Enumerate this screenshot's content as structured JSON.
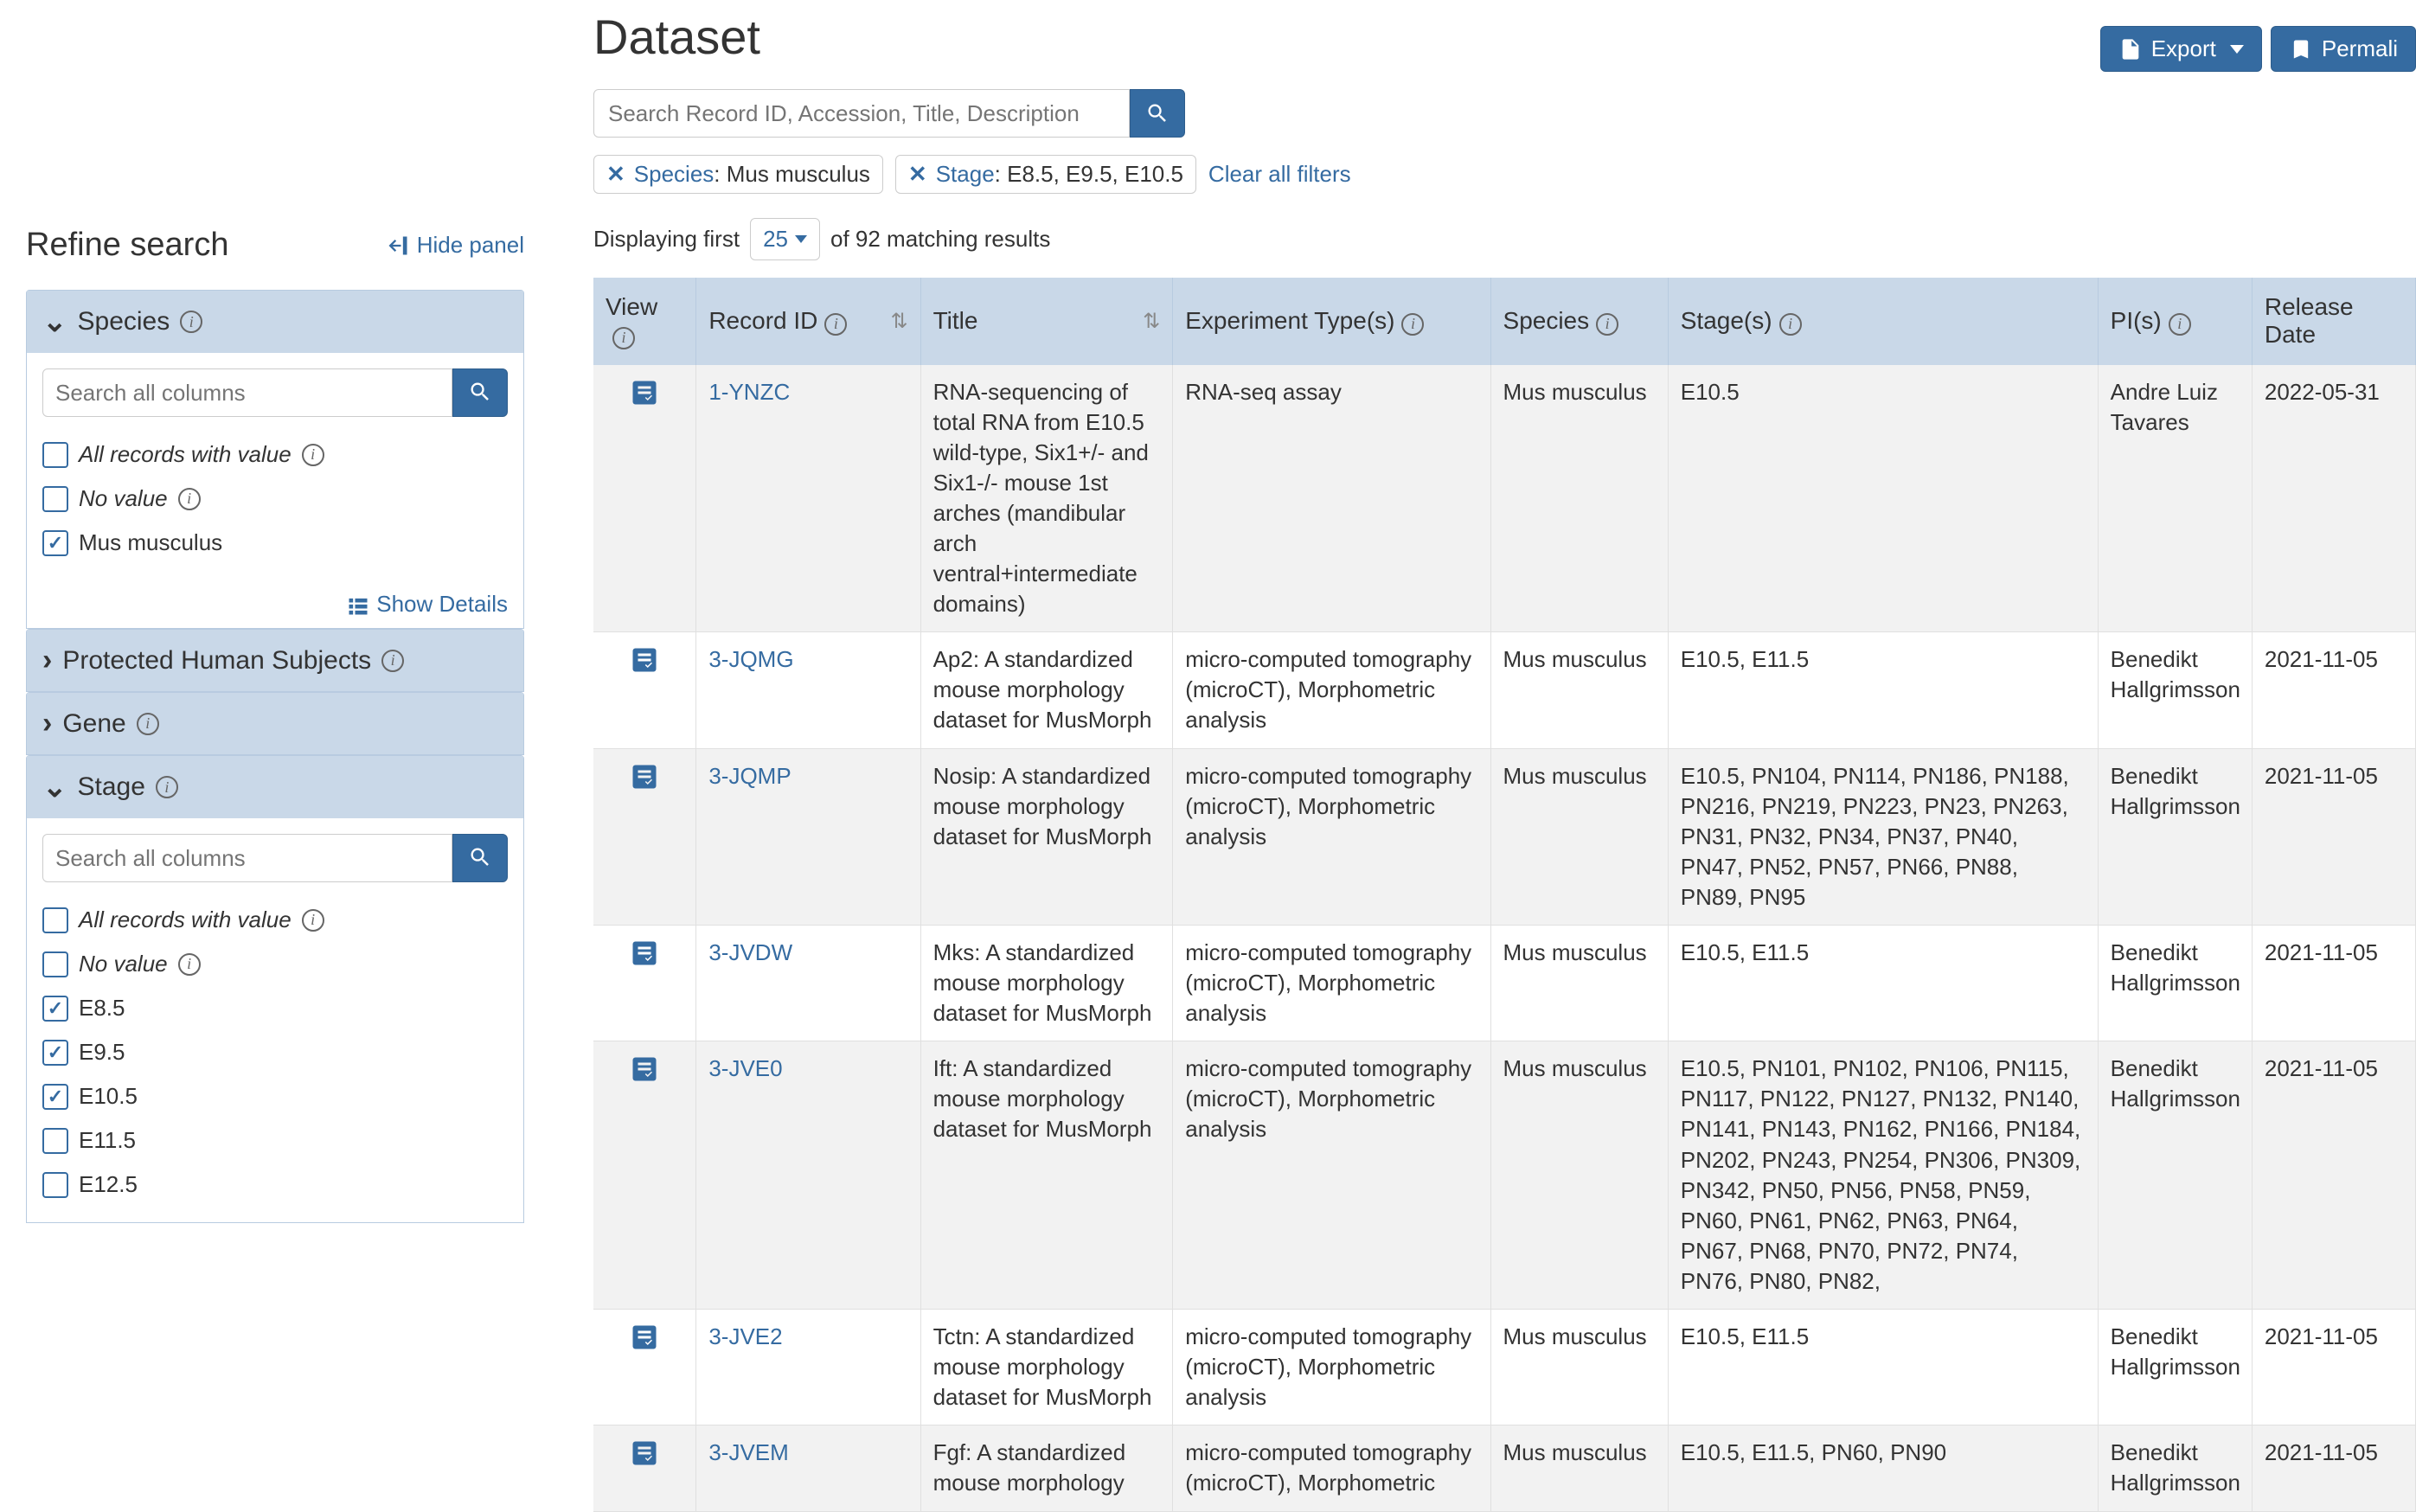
{
  "page_title": "Dataset",
  "header": {
    "export_label": "Export",
    "permalink_label": "Permali"
  },
  "search": {
    "placeholder": "Search Record ID, Accession, Title, Description"
  },
  "filters": [
    {
      "key": "Species",
      "value": "Mus musculus"
    },
    {
      "key": "Stage",
      "value": "E8.5, E9.5, E10.5"
    }
  ],
  "clear_filters_label": "Clear all filters",
  "sidebar": {
    "refine_title": "Refine search",
    "hide_panel_label": "Hide panel",
    "show_details_label": "Show Details",
    "search_placeholder": "Search all columns",
    "facets": [
      {
        "label": "Species",
        "expanded": true,
        "items": [
          {
            "label": "All records with value",
            "italic": true,
            "info": true,
            "checked": false
          },
          {
            "label": "No value",
            "italic": true,
            "info": true,
            "checked": false
          },
          {
            "label": "Mus musculus",
            "italic": false,
            "info": false,
            "checked": true
          }
        ],
        "show_details": true
      },
      {
        "label": "Protected Human Subjects",
        "expanded": false
      },
      {
        "label": "Gene",
        "expanded": false
      },
      {
        "label": "Stage",
        "expanded": true,
        "items": [
          {
            "label": "All records with value",
            "italic": true,
            "info": true,
            "checked": false
          },
          {
            "label": "No value",
            "italic": true,
            "info": true,
            "checked": false
          },
          {
            "label": "E8.5",
            "italic": false,
            "info": false,
            "checked": true
          },
          {
            "label": "E9.5",
            "italic": false,
            "info": false,
            "checked": true
          },
          {
            "label": "E10.5",
            "italic": false,
            "info": false,
            "checked": true
          },
          {
            "label": "E11.5",
            "italic": false,
            "info": false,
            "checked": false
          },
          {
            "label": "E12.5",
            "italic": false,
            "info": false,
            "checked": false
          }
        ]
      }
    ]
  },
  "displaying": {
    "prefix": "Displaying first",
    "page_size": "25",
    "suffix": "of 92 matching results"
  },
  "columns": [
    {
      "label": "View",
      "info": true,
      "sort": false
    },
    {
      "label": "Record ID",
      "info": true,
      "sort": true
    },
    {
      "label": "Title",
      "info": false,
      "sort": true
    },
    {
      "label": "Experiment Type(s)",
      "info": true,
      "sort": false
    },
    {
      "label": "Species",
      "info": true,
      "sort": false
    },
    {
      "label": "Stage(s)",
      "info": true,
      "sort": false
    },
    {
      "label": "PI(s)",
      "info": true,
      "sort": false
    },
    {
      "label": "Release Date",
      "info": false,
      "sort": false
    }
  ],
  "rows": [
    {
      "record_id": "1-YNZC",
      "title": "RNA-sequencing of total RNA from E10.5 wild-type, Six1+/- and Six1-/- mouse 1st arches (mandibular arch ventral+intermediate domains)",
      "experiment": "RNA-seq assay",
      "species": "Mus musculus",
      "stage": "E10.5",
      "pi": "Andre Luiz Tavares",
      "date": "2022-05-31"
    },
    {
      "record_id": "3-JQMG",
      "title": "Ap2: A standardized mouse morphology dataset for MusMorph",
      "experiment": "micro-computed tomography (microCT), Morphometric analysis",
      "species": "Mus musculus",
      "stage": "E10.5, E11.5",
      "pi": "Benedikt Hallgrimsson",
      "date": "2021-11-05"
    },
    {
      "record_id": "3-JQMP",
      "title": "Nosip: A standardized mouse morphology dataset for MusMorph",
      "experiment": "micro-computed tomography (microCT), Morphometric analysis",
      "species": "Mus musculus",
      "stage": "E10.5, PN104, PN114, PN186, PN188, PN216, PN219, PN223, PN23, PN263, PN31, PN32, PN34, PN37, PN40, PN47, PN52, PN57, PN66, PN88, PN89, PN95",
      "pi": "Benedikt Hallgrimsson",
      "date": "2021-11-05"
    },
    {
      "record_id": "3-JVDW",
      "title": "Mks: A standardized mouse morphology dataset for MusMorph",
      "experiment": "micro-computed tomography (microCT), Morphometric analysis",
      "species": "Mus musculus",
      "stage": "E10.5, E11.5",
      "pi": "Benedikt Hallgrimsson",
      "date": "2021-11-05"
    },
    {
      "record_id": "3-JVE0",
      "title": "Ift: A standardized mouse morphology dataset for MusMorph",
      "experiment": "micro-computed tomography (microCT), Morphometric analysis",
      "species": "Mus musculus",
      "stage": "E10.5, PN101, PN102, PN106, PN115, PN117, PN122, PN127, PN132, PN140, PN141, PN143, PN162, PN166, PN184, PN202, PN243, PN254, PN306, PN309, PN342, PN50, PN56, PN58, PN59, PN60, PN61, PN62, PN63, PN64, PN67, PN68, PN70, PN72, PN74, PN76, PN80, PN82,",
      "pi": "Benedikt Hallgrimsson",
      "date": "2021-11-05"
    },
    {
      "record_id": "3-JVE2",
      "title": "Tctn: A standardized mouse morphology dataset for MusMorph",
      "experiment": "micro-computed tomography (microCT), Morphometric analysis",
      "species": "Mus musculus",
      "stage": "E10.5, E11.5",
      "pi": "Benedikt Hallgrimsson",
      "date": "2021-11-05"
    },
    {
      "record_id": "3-JVEM",
      "title": "Fgf: A standardized mouse morphology",
      "experiment": "micro-computed tomography (microCT), Morphometric",
      "species": "Mus musculus",
      "stage": "E10.5, E11.5, PN60, PN90",
      "pi": "Benedikt Hallgrimsson",
      "date": "2021-11-05"
    }
  ]
}
